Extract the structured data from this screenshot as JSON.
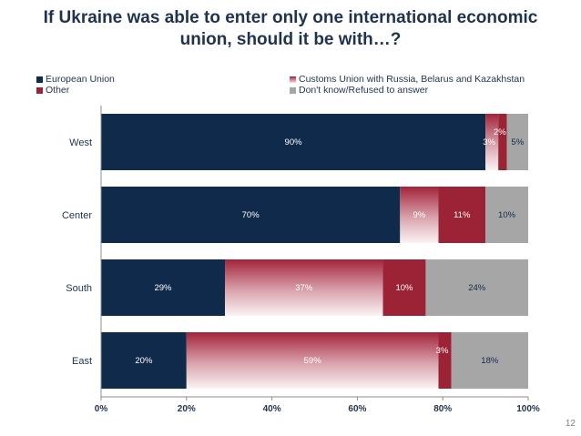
{
  "page": {
    "title_line1": "If Ukraine was able to enter only one international economic",
    "title_line2": "union, should it be with…?",
    "page_number": "12"
  },
  "chart_data": {
    "type": "bar",
    "orientation": "horizontal",
    "stacked": true,
    "title": "If Ukraine was able to enter only one international economic union, should it be with…?",
    "categories": [
      "West",
      "Center",
      "South",
      "East"
    ],
    "series": [
      {
        "name": "European Union",
        "values": [
          90,
          70,
          29,
          20
        ],
        "labels": [
          "90%",
          "70%",
          "29%",
          "20%"
        ],
        "color": "#102a4c",
        "label_color": "#ffffff"
      },
      {
        "name": "Customs Union with Russia, Belarus and Kazakhstan",
        "values": [
          3,
          9,
          37,
          59
        ],
        "labels": [
          "3%",
          "9%",
          "37%",
          "59%"
        ],
        "color": "#a3233a",
        "gradient": true,
        "label_color": "#ffffff"
      },
      {
        "name": "Other",
        "values": [
          2,
          11,
          10,
          3
        ],
        "labels": [
          "2%",
          "11%",
          "10%",
          "3%"
        ],
        "color": "#9b2335",
        "label_color": "#ffffff"
      },
      {
        "name": "Don't know/Refused to answer",
        "values": [
          5,
          10,
          24,
          18
        ],
        "labels": [
          "5%",
          "10%",
          "24%",
          "18%"
        ],
        "color": "#a6a6a6",
        "label_color": "#102a4c"
      }
    ],
    "x_ticks": [
      "0%",
      "20%",
      "40%",
      "60%",
      "80%",
      "100%"
    ],
    "xlim": [
      0,
      100
    ],
    "legend_position": "top",
    "grid": false
  }
}
